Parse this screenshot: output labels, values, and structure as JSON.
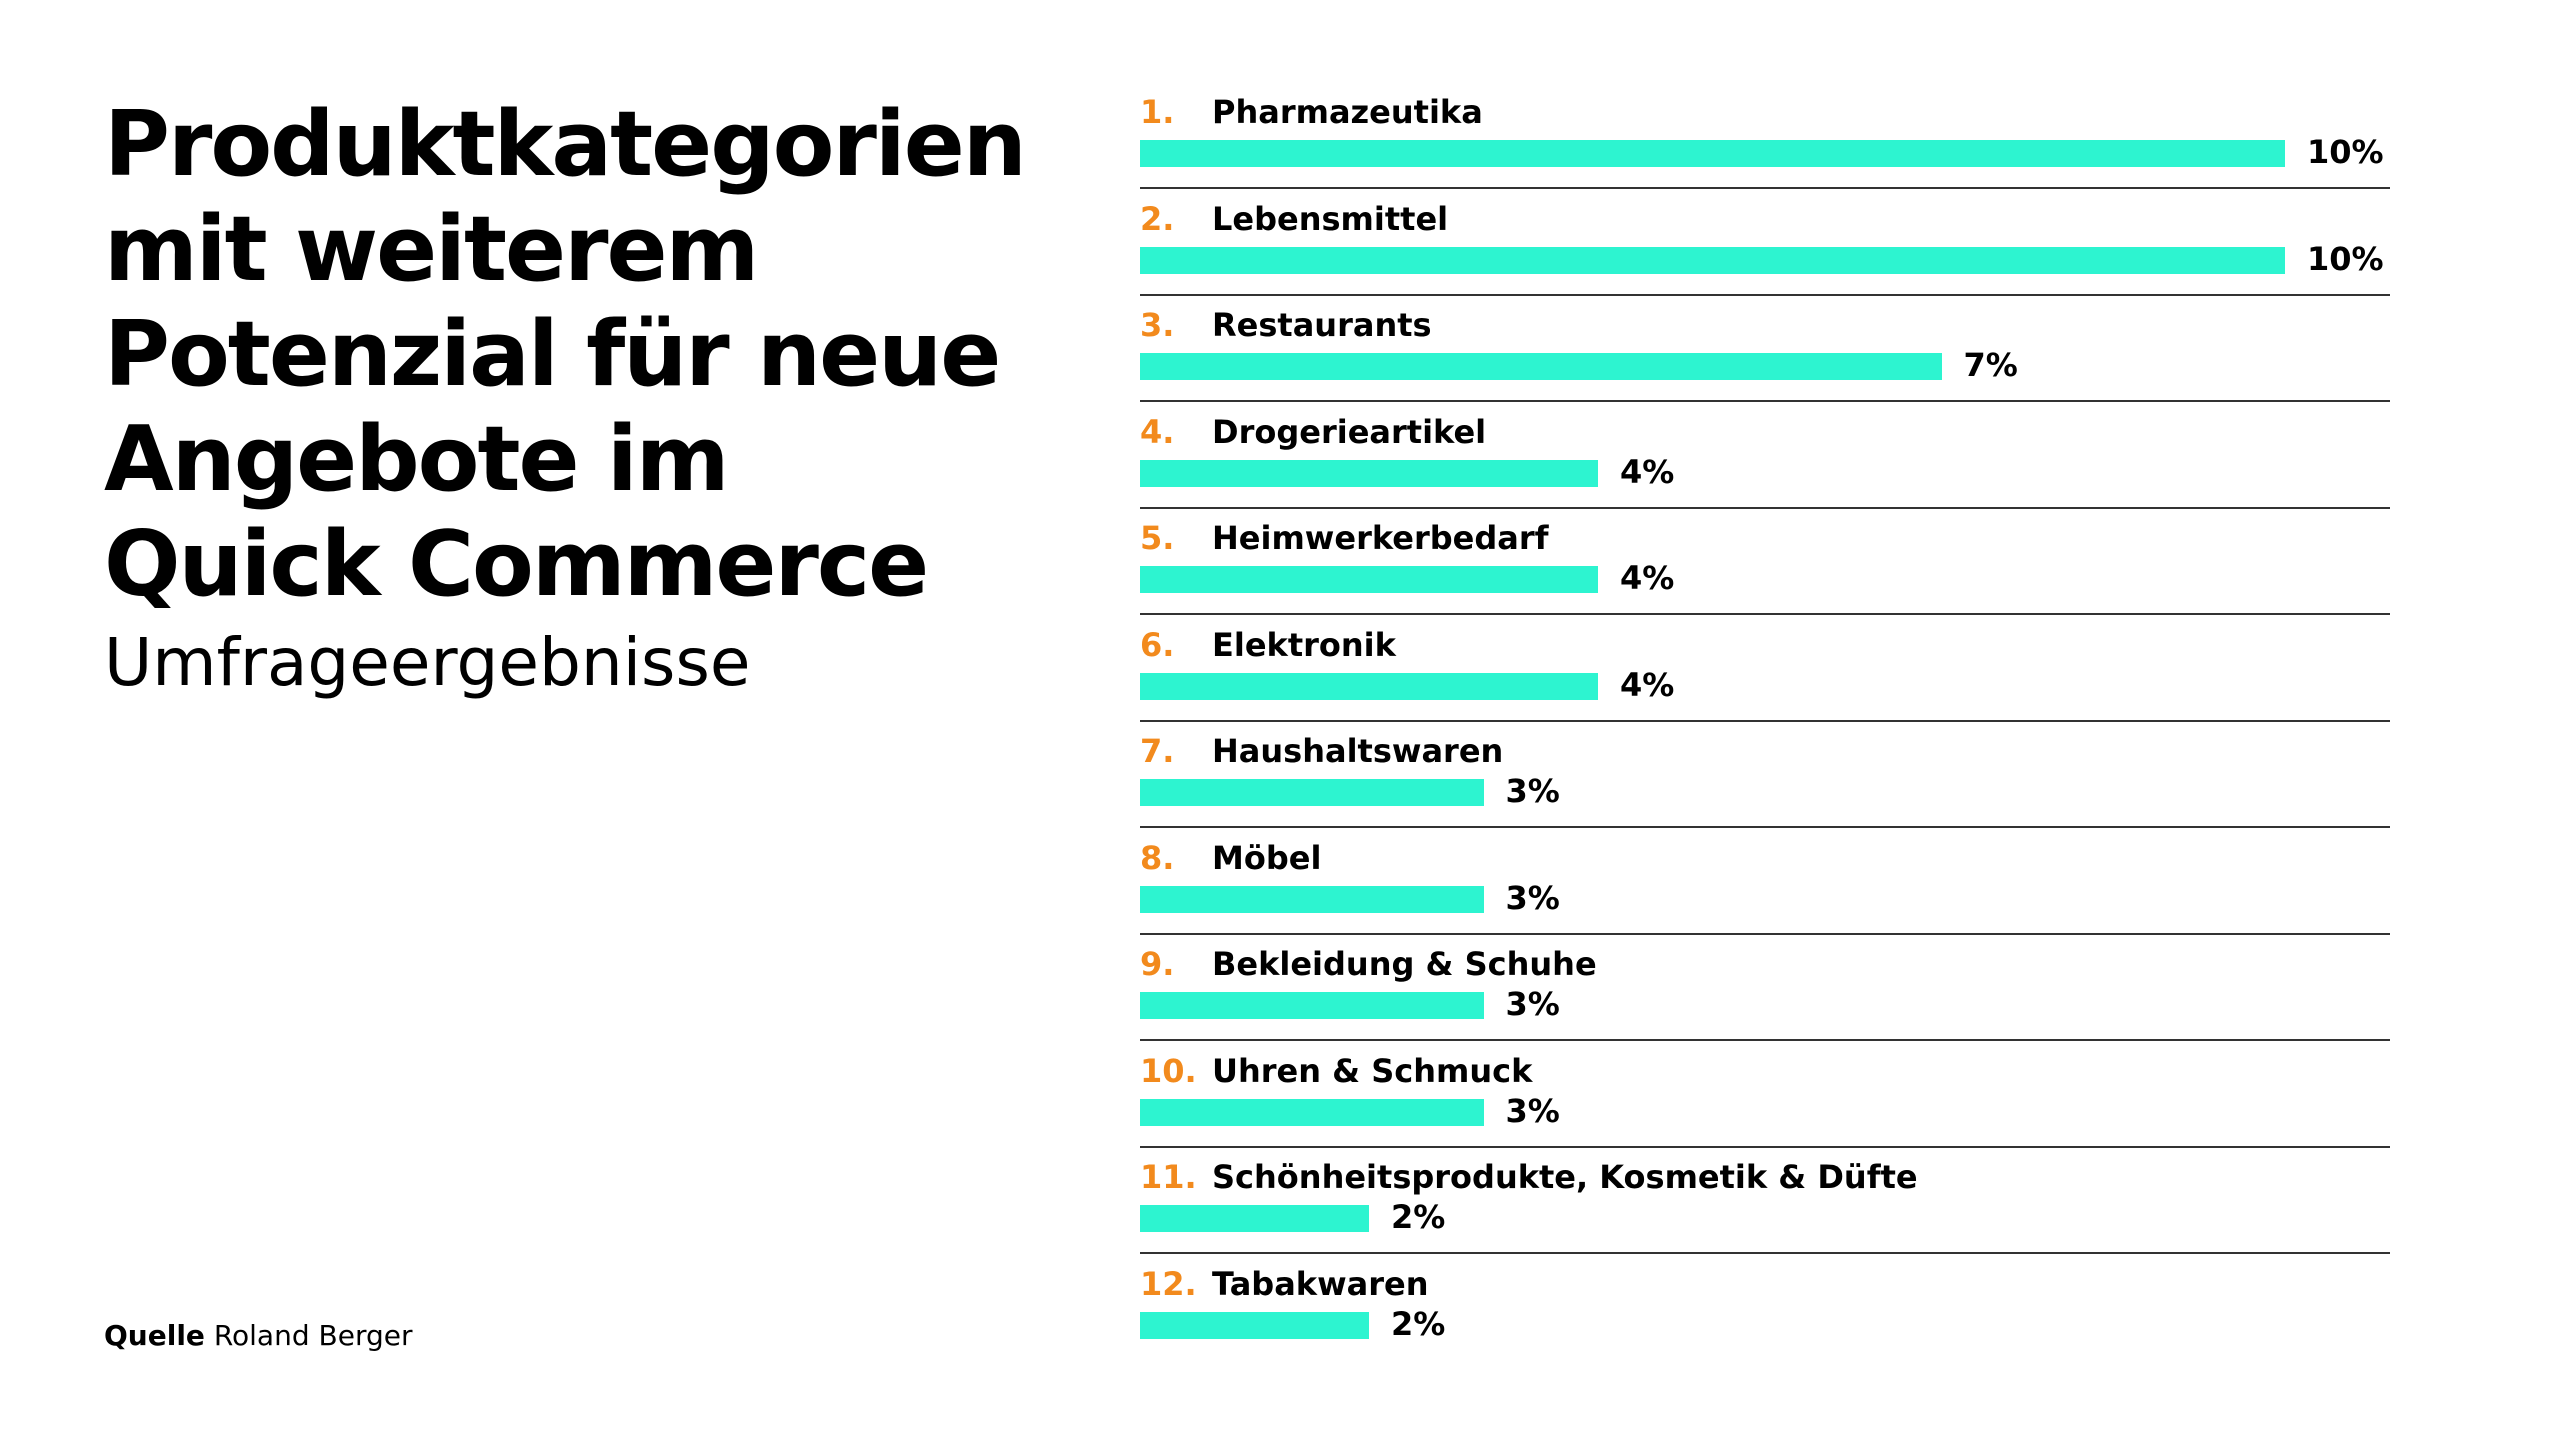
{
  "title": "Produktkategorien\nmit weiterem\nPotenzial für neue\nAngebote im\nQuick Commerce",
  "subtitle": "Umfrageergebnisse",
  "source": {
    "label": "Quelle",
    "text": "Roland Berger"
  },
  "colors": {
    "bar": "#2df4d0",
    "rank": "#f28a1d",
    "text": "#000000",
    "divider": "#333333"
  },
  "chart_data": {
    "type": "bar",
    "orientation": "horizontal",
    "unit": "%",
    "xlim": [
      0,
      10
    ],
    "categories": [
      "Pharmazeutika",
      "Lebensmittel",
      "Restaurants",
      "Drogerieartikel",
      "Heimwerkerbedarf",
      "Elektronik",
      "Haushaltswaren",
      "Möbel",
      "Bekleidung & Schuhe",
      "Uhren & Schmuck",
      "Schönheitsprodukte, Kosmetik & Düfte",
      "Tabakwaren"
    ],
    "ranks": [
      "1.",
      "2.",
      "3.",
      "4.",
      "5.",
      "6.",
      "7.",
      "8.",
      "9.",
      "10.",
      "11.",
      "12."
    ],
    "values": [
      10,
      10,
      7,
      4,
      4,
      4,
      3,
      3,
      3,
      3,
      2,
      2
    ],
    "value_labels": [
      "10%",
      "10%",
      "7%",
      "4%",
      "4%",
      "4%",
      "3%",
      "3%",
      "3%",
      "3%",
      "2%",
      "2%"
    ],
    "grid": false,
    "legend": "none"
  }
}
